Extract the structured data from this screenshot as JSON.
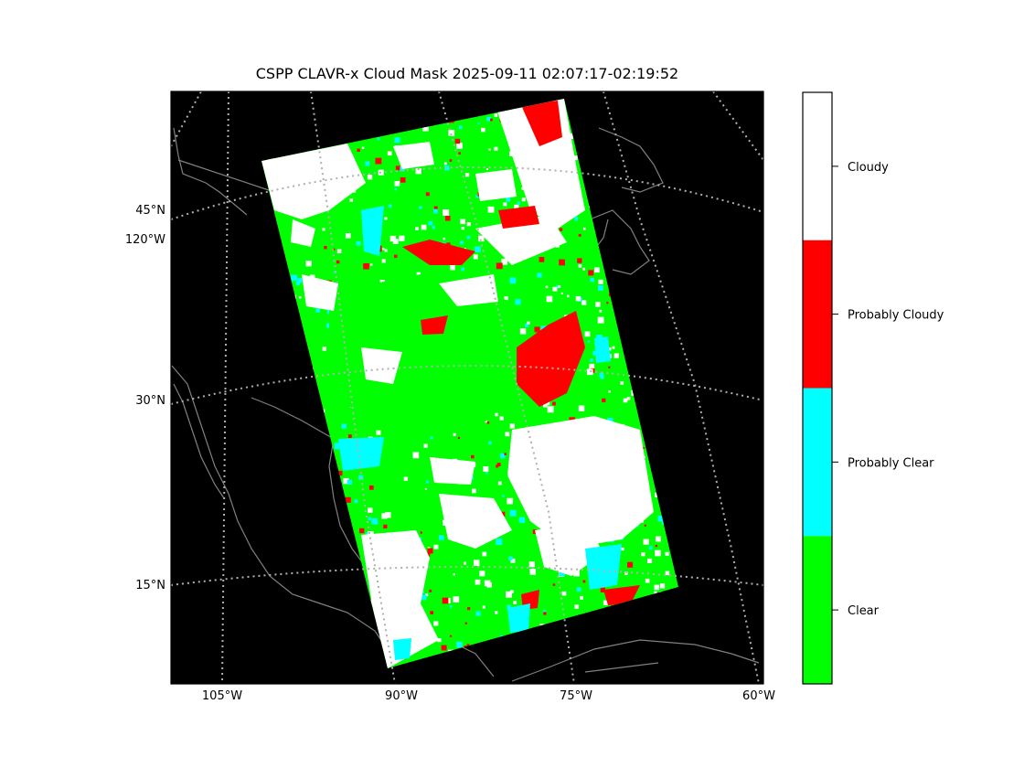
{
  "title": "CSPP CLAVR-x Cloud Mask 2025-09-11 02:07:17-02:19:52",
  "map": {
    "background_color": "#000000",
    "boundary_color": "#808080",
    "graticule_color": "#b0b0b0",
    "lat_labels": [
      "45°N",
      "30°N",
      "15°N"
    ],
    "lon_labels_bottom": [
      "105°W",
      "90°W",
      "75°W",
      "60°W"
    ],
    "lon_label_left": "120°W"
  },
  "colorbar": {
    "categories": [
      {
        "label": "Cloudy",
        "color": "#ffffff"
      },
      {
        "label": "Probably Cloudy",
        "color": "#ff0000"
      },
      {
        "label": "Probably Clear",
        "color": "#00ffff"
      },
      {
        "label": "Clear",
        "color": "#00ff00"
      }
    ]
  }
}
